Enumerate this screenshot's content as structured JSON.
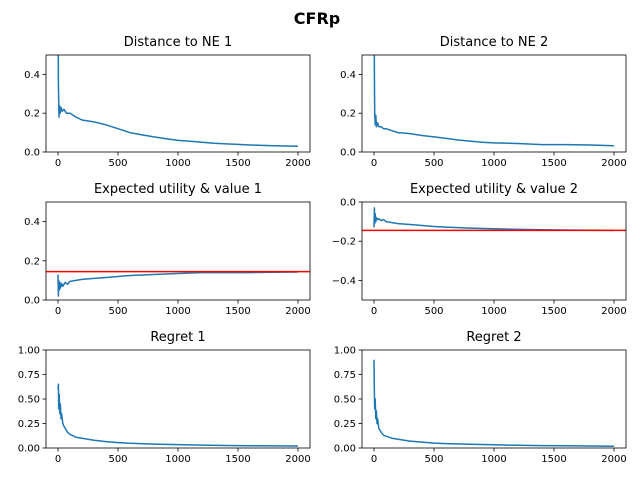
{
  "figure": {
    "title": "CFRp"
  },
  "chart_data": [
    {
      "type": "line",
      "title": "Distance to NE 1",
      "xlim": [
        -100,
        2100
      ],
      "ylim": [
        0,
        0.5
      ],
      "xticks": [
        0,
        500,
        1000,
        1500,
        2000
      ],
      "yticks": [
        0.0,
        0.2,
        0.4
      ],
      "ytick_labels": [
        "0.0",
        "0.2",
        "0.4"
      ],
      "grid": false,
      "series": [
        {
          "color": "#1f77b4",
          "x": [
            0,
            3,
            8,
            12,
            18,
            25,
            35,
            50,
            70,
            100,
            150,
            200,
            300,
            400,
            500,
            600,
            700,
            800,
            900,
            1000,
            1100,
            1200,
            1300,
            1400,
            1500,
            1600,
            1700,
            1800,
            1900,
            2000
          ],
          "y": [
            0.95,
            0.35,
            0.18,
            0.24,
            0.2,
            0.23,
            0.21,
            0.22,
            0.2,
            0.2,
            0.18,
            0.165,
            0.155,
            0.14,
            0.12,
            0.1,
            0.088,
            0.078,
            0.068,
            0.06,
            0.055,
            0.05,
            0.045,
            0.042,
            0.039,
            0.036,
            0.034,
            0.032,
            0.031,
            0.03
          ]
        }
      ]
    },
    {
      "type": "line",
      "title": "Distance to NE 2",
      "xlim": [
        -100,
        2100
      ],
      "ylim": [
        0,
        0.5
      ],
      "xticks": [
        0,
        500,
        1000,
        1500,
        2000
      ],
      "yticks": [
        0.0,
        0.2,
        0.4
      ],
      "ytick_labels": [
        "0.0",
        "0.2",
        "0.4"
      ],
      "grid": false,
      "series": [
        {
          "color": "#1f77b4",
          "x": [
            0,
            3,
            6,
            10,
            15,
            20,
            30,
            40,
            60,
            80,
            100,
            150,
            200,
            300,
            400,
            500,
            600,
            700,
            800,
            900,
            1000,
            1200,
            1400,
            1600,
            1800,
            2000
          ],
          "y": [
            0.95,
            0.4,
            0.2,
            0.14,
            0.19,
            0.13,
            0.15,
            0.13,
            0.13,
            0.12,
            0.12,
            0.11,
            0.1,
            0.095,
            0.085,
            0.078,
            0.07,
            0.062,
            0.056,
            0.05,
            0.047,
            0.044,
            0.038,
            0.038,
            0.036,
            0.032
          ]
        }
      ]
    },
    {
      "type": "line",
      "title": "Expected utility & value 1",
      "xlim": [
        -100,
        2100
      ],
      "ylim": [
        0,
        0.5
      ],
      "xticks": [
        0,
        500,
        1000,
        1500,
        2000
      ],
      "yticks": [
        0.0,
        0.2,
        0.4
      ],
      "ytick_labels": [
        "0.0",
        "0.2",
        "0.4"
      ],
      "grid": false,
      "hline": {
        "y": 0.145,
        "color": "#ff0000"
      },
      "series": [
        {
          "color": "#1f77b4",
          "x": [
            0,
            3,
            6,
            10,
            15,
            20,
            30,
            40,
            60,
            80,
            100,
            150,
            200,
            300,
            400,
            500,
            600,
            800,
            1000,
            1200,
            1400,
            1600,
            1800,
            2000
          ],
          "y": [
            0.13,
            0.02,
            0.1,
            0.05,
            0.09,
            0.06,
            0.085,
            0.07,
            0.09,
            0.08,
            0.095,
            0.1,
            0.105,
            0.11,
            0.115,
            0.12,
            0.125,
            0.13,
            0.135,
            0.14,
            0.14,
            0.14,
            0.142,
            0.143
          ]
        }
      ]
    },
    {
      "type": "line",
      "title": "Expected utility & value 2",
      "xlim": [
        -100,
        2100
      ],
      "ylim": [
        -0.5,
        0
      ],
      "xticks": [
        0,
        500,
        1000,
        1500,
        2000
      ],
      "yticks": [
        -0.4,
        -0.2,
        0.0
      ],
      "ytick_labels": [
        "−0.4",
        "−0.2",
        "0.0"
      ],
      "grid": false,
      "hline": {
        "y": -0.145,
        "color": "#ff0000"
      },
      "series": [
        {
          "color": "#1f77b4",
          "x": [
            0,
            3,
            6,
            10,
            15,
            20,
            30,
            40,
            60,
            80,
            100,
            150,
            200,
            300,
            400,
            500,
            600,
            800,
            1000,
            1200,
            1400,
            1600,
            1800,
            2000
          ],
          "y": [
            -0.13,
            -0.03,
            -0.11,
            -0.06,
            -0.1,
            -0.08,
            -0.09,
            -0.085,
            -0.095,
            -0.09,
            -0.1,
            -0.105,
            -0.11,
            -0.115,
            -0.12,
            -0.125,
            -0.128,
            -0.133,
            -0.136,
            -0.14,
            -0.142,
            -0.143,
            -0.144,
            -0.145
          ]
        }
      ]
    },
    {
      "type": "line",
      "title": "Regret 1",
      "xlim": [
        -100,
        2100
      ],
      "ylim": [
        0,
        1
      ],
      "xticks": [
        0,
        500,
        1000,
        1500,
        2000
      ],
      "yticks": [
        0.0,
        0.25,
        0.5,
        0.75,
        1.0
      ],
      "ytick_labels": [
        "0.00",
        "0.25",
        "0.50",
        "0.75",
        "1.00"
      ],
      "grid": false,
      "series": [
        {
          "color": "#1f77b4",
          "x": [
            0,
            3,
            6,
            10,
            15,
            20,
            25,
            30,
            40,
            50,
            60,
            80,
            100,
            150,
            200,
            300,
            400,
            500,
            600,
            800,
            1000,
            1200,
            1400,
            1600,
            1800,
            2000
          ],
          "y": [
            0.6,
            0.65,
            0.4,
            0.55,
            0.35,
            0.45,
            0.3,
            0.35,
            0.25,
            0.22,
            0.2,
            0.16,
            0.14,
            0.11,
            0.1,
            0.08,
            0.065,
            0.055,
            0.048,
            0.04,
            0.035,
            0.03,
            0.026,
            0.023,
            0.021,
            0.02
          ]
        }
      ]
    },
    {
      "type": "line",
      "title": "Regret 2",
      "xlim": [
        -100,
        2100
      ],
      "ylim": [
        0,
        1
      ],
      "xticks": [
        0,
        500,
        1000,
        1500,
        2000
      ],
      "yticks": [
        0.0,
        0.25,
        0.5,
        0.75,
        1.0
      ],
      "ytick_labels": [
        "0.00",
        "0.25",
        "0.50",
        "0.75",
        "1.00"
      ],
      "grid": false,
      "series": [
        {
          "color": "#1f77b4",
          "x": [
            0,
            3,
            6,
            10,
            15,
            20,
            25,
            30,
            40,
            50,
            60,
            80,
            100,
            150,
            200,
            300,
            400,
            500,
            600,
            800,
            1000,
            1200,
            1400,
            1600,
            1800,
            2000
          ],
          "y": [
            0.9,
            0.55,
            0.4,
            0.5,
            0.3,
            0.38,
            0.25,
            0.3,
            0.2,
            0.18,
            0.16,
            0.13,
            0.12,
            0.1,
            0.09,
            0.07,
            0.06,
            0.05,
            0.045,
            0.038,
            0.033,
            0.028,
            0.025,
            0.022,
            0.02,
            0.018
          ]
        }
      ]
    }
  ]
}
